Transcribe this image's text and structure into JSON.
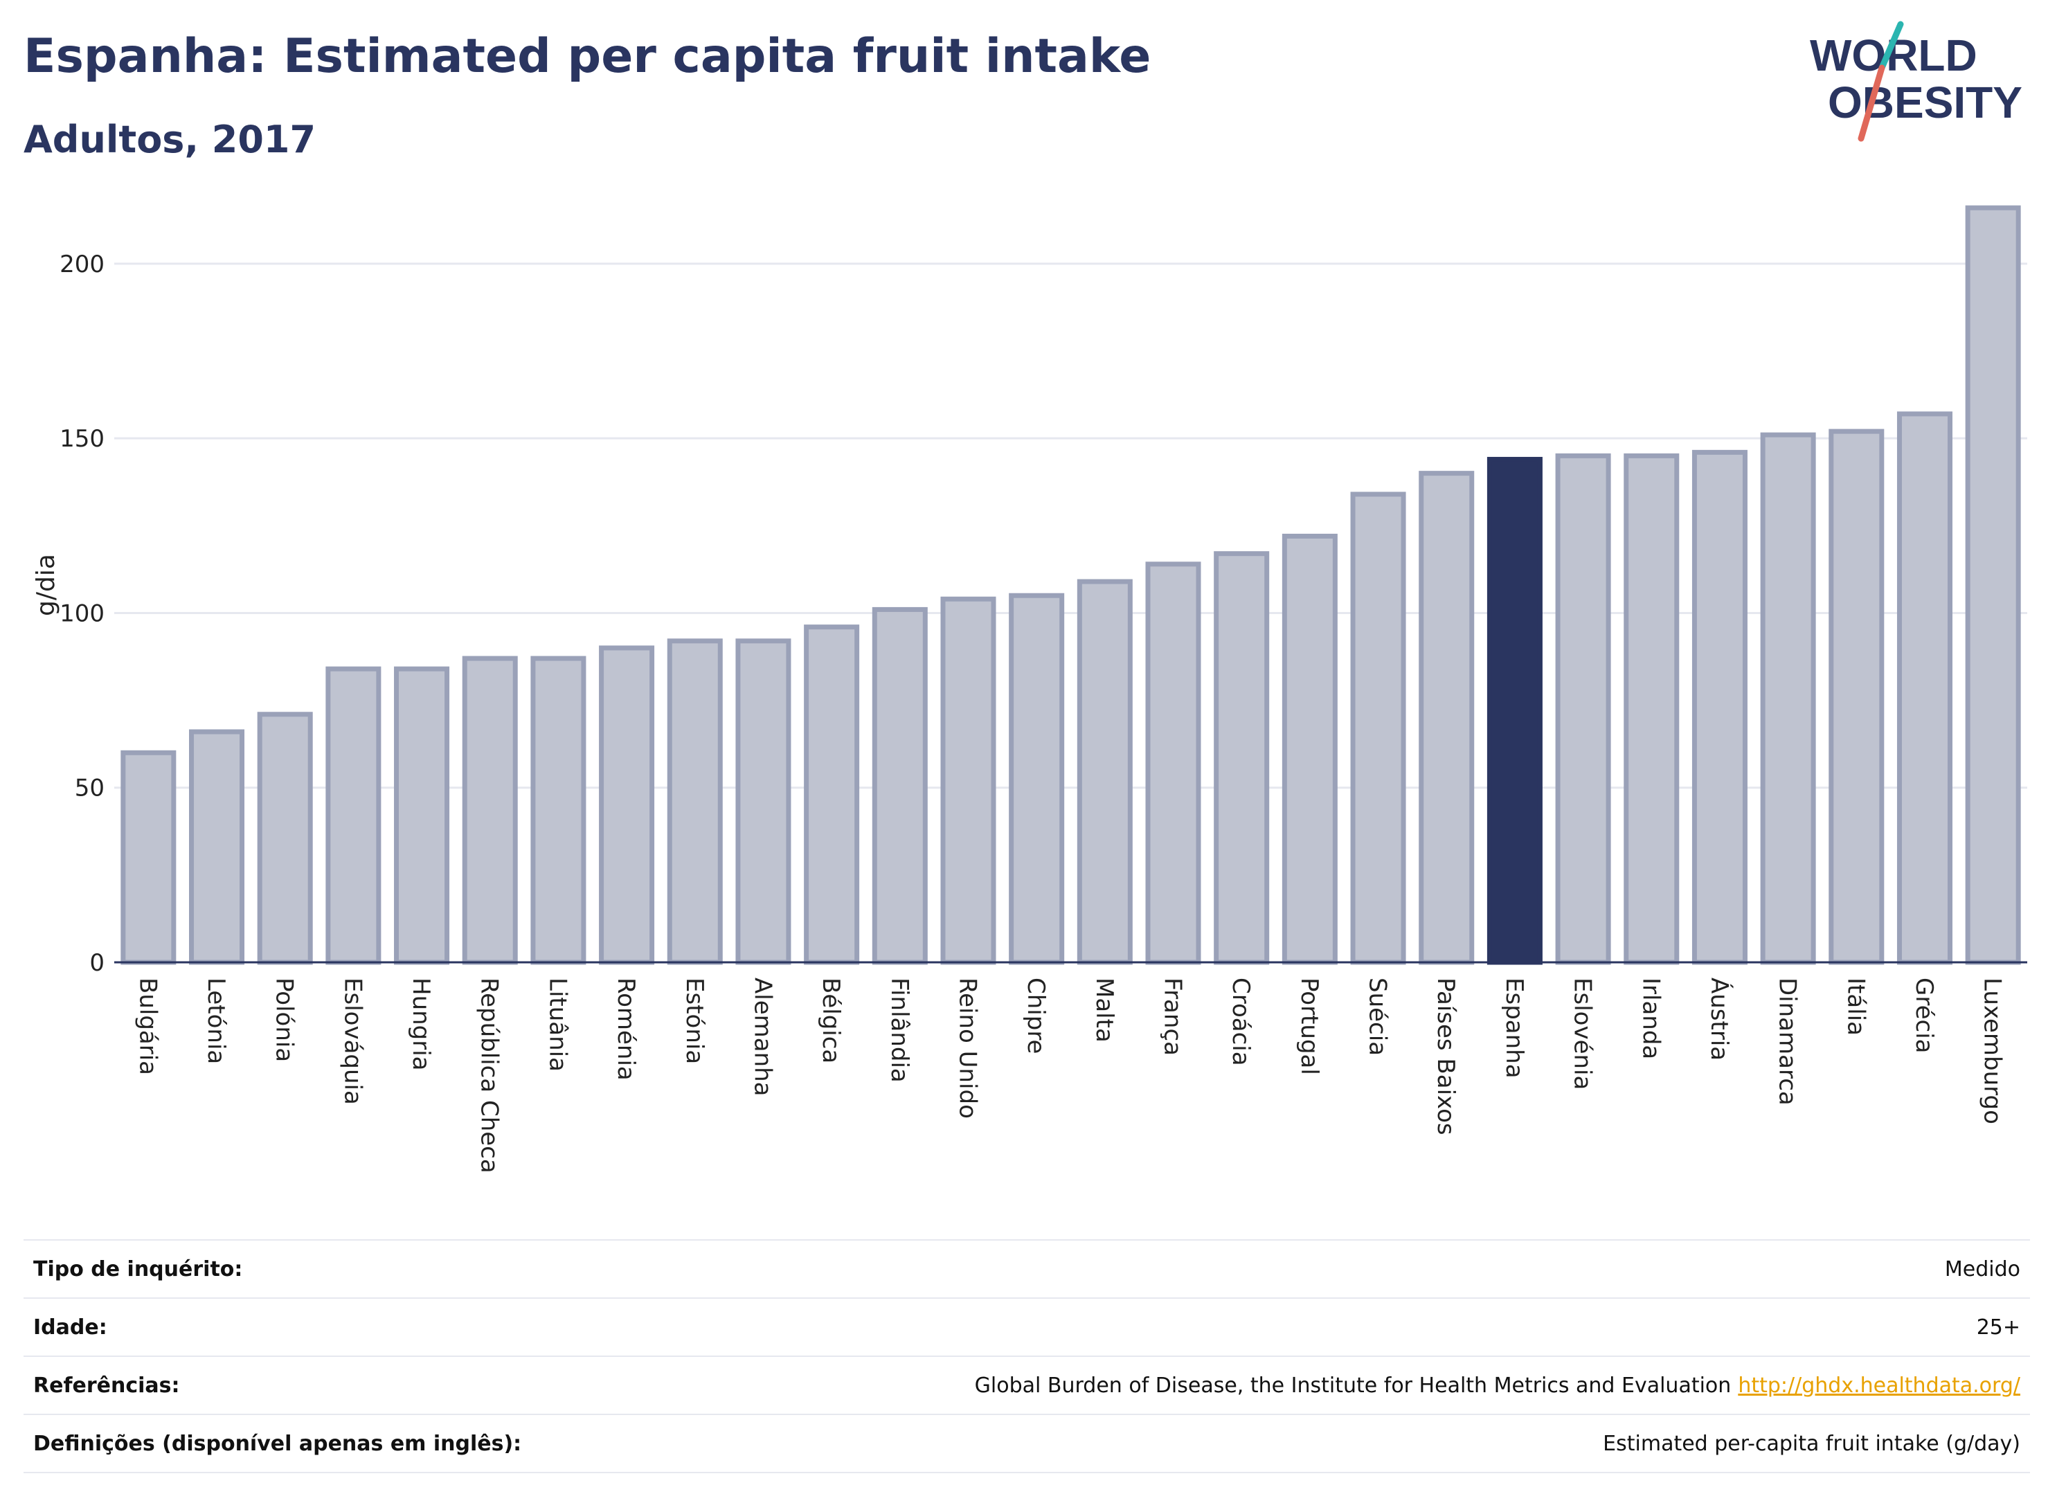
{
  "header": {
    "title": "Espanha: Estimated per capita fruit intake",
    "subtitle": "Adultos, 2017"
  },
  "logo": {
    "line1": "WORLD",
    "line2": "OBESITY",
    "accent_teal": "#2bb5b0",
    "accent_red": "#e0685a",
    "text_color": "#2a3560"
  },
  "colors": {
    "highlight": "#2a3560",
    "bar_fill": "#bfc3d0",
    "bar_stroke": "#9aa1b8",
    "grid": "#e6e8ef",
    "axis": "#2a3560"
  },
  "chart_data": {
    "type": "bar",
    "ylabel": "g/dia",
    "ylim": [
      0,
      220
    ],
    "yticks": [
      0,
      50,
      100,
      150,
      200
    ],
    "grid": true,
    "highlight_category": "Espanha",
    "categories": [
      "Bulgária",
      "Letónia",
      "Polónia",
      "Eslováquia",
      "Hungria",
      "República Checa",
      "Lituânia",
      "Roménia",
      "Estónia",
      "Alemanha",
      "Bélgica",
      "Finlândia",
      "Reino Unido",
      "Chipre",
      "Malta",
      "França",
      "Croácia",
      "Portugal",
      "Suécia",
      "Países Baixos",
      "Espanha",
      "Eslovénia",
      "Irlanda",
      "Áustria",
      "Dinamarca",
      "Itália",
      "Grécia",
      "Luxemburgo"
    ],
    "values": [
      60,
      66,
      71,
      84,
      84,
      87,
      87,
      90,
      92,
      92,
      96,
      101,
      104,
      105,
      109,
      114,
      117,
      122,
      134,
      140,
      144,
      145,
      145,
      146,
      151,
      152,
      157,
      216
    ]
  },
  "meta": [
    {
      "label": "Tipo de inquérito:",
      "value": "Medido"
    },
    {
      "label": "Idade:",
      "value": "25+"
    },
    {
      "label": "Referências:",
      "value": "Global Burden of Disease, the Institute for Health Metrics and Evaluation",
      "link": "http://ghdx.healthdata.org/"
    },
    {
      "label": "Definições (disponível apenas em inglês):",
      "value": "Estimated per-capita fruit intake (g/day)"
    }
  ]
}
